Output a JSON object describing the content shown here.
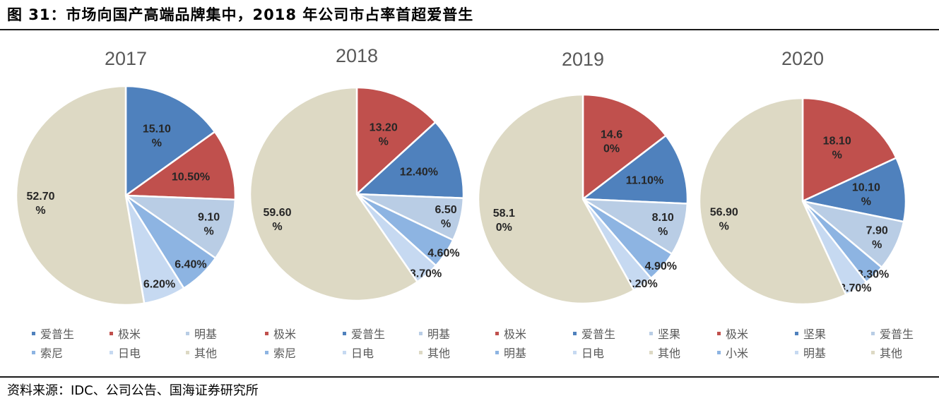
{
  "figure": {
    "title": "图 31：市场向国产高端品牌集中，2018 年公司市占率首超爱普生",
    "source": "资料来源：IDC、公司公告、国海证券研究所"
  },
  "colors": {
    "aipusheng": "#4F81BD",
    "jimi": "#C0504D",
    "mingji_light": "#B9CDE5",
    "suoni": "#8DB4E2",
    "ridian": "#C6D9F1",
    "qita": "#DDD9C4"
  },
  "chart_data": [
    {
      "type": "pie",
      "title": "2017",
      "slices": [
        {
          "name": "爱普生",
          "value": 15.1,
          "label": [
            "15.10",
            "%"
          ],
          "color": "#4F81BD"
        },
        {
          "name": "极米",
          "value": 10.5,
          "label": [
            "10.50%"
          ],
          "color": "#C0504D"
        },
        {
          "name": "明基",
          "value": 9.1,
          "label": [
            "9.10",
            "%"
          ],
          "color": "#B9CDE5"
        },
        {
          "name": "索尼",
          "value": 6.4,
          "label": [
            "6.40%"
          ],
          "color": "#8DB4E2"
        },
        {
          "name": "日电",
          "value": 6.2,
          "label": [
            "6.20%"
          ],
          "color": "#C6D9F1"
        },
        {
          "name": "其他",
          "value": 52.7,
          "label": [
            "52.70",
            "%"
          ],
          "color": "#DDD9C4"
        }
      ],
      "legend": [
        {
          "name": "爱普生",
          "color": "#4F81BD"
        },
        {
          "name": "极米",
          "color": "#C0504D"
        },
        {
          "name": "明基",
          "color": "#B9CDE5"
        },
        {
          "name": "索尼",
          "color": "#8DB4E2"
        },
        {
          "name": "日电",
          "color": "#C6D9F1"
        },
        {
          "name": "其他",
          "color": "#DDD9C4"
        }
      ]
    },
    {
      "type": "pie",
      "title": "2018",
      "slices": [
        {
          "name": "极米",
          "value": 13.2,
          "label": [
            "13.20",
            "%"
          ],
          "color": "#C0504D"
        },
        {
          "name": "爱普生",
          "value": 12.4,
          "label": [
            "12.40%"
          ],
          "color": "#4F81BD"
        },
        {
          "name": "明基",
          "value": 6.5,
          "label": [
            "6.50",
            "%"
          ],
          "color": "#B9CDE5"
        },
        {
          "name": "索尼",
          "value": 4.6,
          "label": [
            "4.60%"
          ],
          "color": "#8DB4E2"
        },
        {
          "name": "日电",
          "value": 3.7,
          "label": [
            "3.70%"
          ],
          "color": "#C6D9F1"
        },
        {
          "name": "其他",
          "value": 59.6,
          "label": [
            "59.60",
            "%"
          ],
          "color": "#DDD9C4"
        }
      ],
      "legend": [
        {
          "name": "极米",
          "color": "#C0504D"
        },
        {
          "name": "爱普生",
          "color": "#4F81BD"
        },
        {
          "name": "明基",
          "color": "#B9CDE5"
        },
        {
          "name": "索尼",
          "color": "#8DB4E2"
        },
        {
          "name": "日电",
          "color": "#C6D9F1"
        },
        {
          "name": "其他",
          "color": "#DDD9C4"
        }
      ]
    },
    {
      "type": "pie",
      "title": "2019",
      "slices": [
        {
          "name": "极米",
          "value": 14.6,
          "label": [
            "14.6",
            "0%"
          ],
          "color": "#C0504D"
        },
        {
          "name": "爱普生",
          "value": 11.1,
          "label": [
            "11.10%"
          ],
          "color": "#4F81BD"
        },
        {
          "name": "坚果",
          "value": 8.1,
          "label": [
            "8.10",
            "%"
          ],
          "color": "#B9CDE5"
        },
        {
          "name": "明基",
          "value": 4.9,
          "label": [
            "4.90%"
          ],
          "color": "#8DB4E2"
        },
        {
          "name": "日电",
          "value": 3.2,
          "label": [
            "3.20%"
          ],
          "color": "#C6D9F1"
        },
        {
          "name": "其他",
          "value": 58.1,
          "label": [
            "58.1",
            "0%"
          ],
          "color": "#DDD9C4"
        }
      ],
      "legend": [
        {
          "name": "极米",
          "color": "#C0504D"
        },
        {
          "name": "爱普生",
          "color": "#4F81BD"
        },
        {
          "name": "坚果",
          "color": "#B9CDE5"
        },
        {
          "name": "明基",
          "color": "#8DB4E2"
        },
        {
          "name": "日电",
          "color": "#C6D9F1"
        },
        {
          "name": "其他",
          "color": "#DDD9C4"
        }
      ]
    },
    {
      "type": "pie",
      "title": "2020",
      "slices": [
        {
          "name": "极米",
          "value": 18.1,
          "label": [
            "18.10",
            "%"
          ],
          "color": "#C0504D"
        },
        {
          "name": "坚果",
          "value": 10.1,
          "label": [
            "10.10",
            "%"
          ],
          "color": "#4F81BD"
        },
        {
          "name": "爱普生",
          "value": 7.9,
          "label": [
            "7.90",
            "%"
          ],
          "color": "#B9CDE5"
        },
        {
          "name": "小米",
          "value": 3.3,
          "label": [
            "3.30%"
          ],
          "color": "#8DB4E2"
        },
        {
          "name": "明基",
          "value": 3.7,
          "label": [
            "3.70%"
          ],
          "color": "#C6D9F1"
        },
        {
          "name": "其他",
          "value": 56.9,
          "label": [
            "56.90",
            "%"
          ],
          "color": "#DDD9C4"
        }
      ],
      "legend": [
        {
          "name": "极米",
          "color": "#C0504D"
        },
        {
          "name": "坚果",
          "color": "#4F81BD"
        },
        {
          "name": "爱普生",
          "color": "#B9CDE5"
        },
        {
          "name": "小米",
          "color": "#8DB4E2"
        },
        {
          "name": "明基",
          "color": "#C6D9F1"
        },
        {
          "name": "其他",
          "color": "#DDD9C4"
        }
      ]
    }
  ]
}
